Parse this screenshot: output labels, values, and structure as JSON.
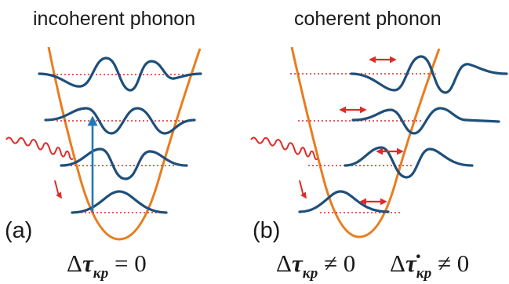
{
  "panel_a": {
    "title": "incoherent phonon",
    "label": "(a)",
    "equation": {
      "delta": "Δ",
      "symbol": "τ",
      "subscript": "κp",
      "relation": "= 0"
    }
  },
  "panel_b": {
    "title": "coherent phonon",
    "label": "(b)",
    "equation_1": {
      "delta": "Δ",
      "symbol": "τ",
      "subscript": "κp",
      "relation": "≠ 0"
    },
    "equation_2": {
      "delta": "Δ",
      "symbol": "τ̇",
      "subscript": "κp",
      "relation": "≠ 0"
    }
  },
  "colors": {
    "potential": "#e87d1f",
    "wavefunction": "#1f4f7a",
    "level_line": "#d62b2b",
    "excitation_arrow": "#2277bb",
    "laser_pulse": "#e02a2a",
    "oscillation_arrow": "#e02a2a",
    "text": "#1a1a1a"
  }
}
